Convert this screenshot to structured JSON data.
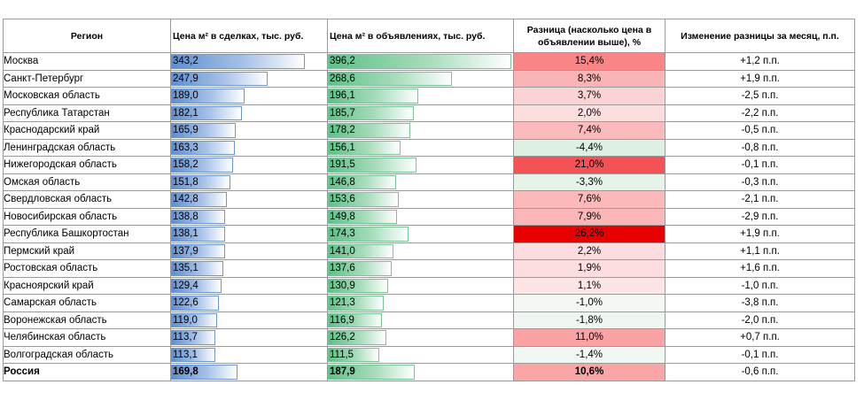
{
  "headers": {
    "region": "Регион",
    "deal_price": "Цена м² в сделках, тыс. руб.",
    "ad_price": "Цена м² в объявлениях, тыс. руб.",
    "difference": "Разница (насколько цена в объявлении выше), %",
    "change": "Изменение разницы за месяц, п.п."
  },
  "scale": {
    "bar_max": 400,
    "diff_color_min": -4.4,
    "diff_color_max": 26.2
  },
  "colors": {
    "bar_blue": "#5f8fd0",
    "bar_green": "#5fc088",
    "diff_high": "#f8696b",
    "diff_low": "#e6f4ea"
  },
  "rows": [
    {
      "region": "Москва",
      "deal_label": "343,2",
      "deal": 343.2,
      "ad_label": "396,2",
      "ad": 396.2,
      "diff_label": "15,4%",
      "diff": 15.4,
      "change": "+1,2 п.п."
    },
    {
      "region": "Санкт-Петербург",
      "deal_label": "247,9",
      "deal": 247.9,
      "ad_label": "268,6",
      "ad": 268.6,
      "diff_label": "8,3%",
      "diff": 8.3,
      "change": "+1,9 п.п."
    },
    {
      "region": "Московская область",
      "deal_label": "189,0",
      "deal": 189.0,
      "ad_label": "196,1",
      "ad": 196.1,
      "diff_label": "3,7%",
      "diff": 3.7,
      "change": "-2,5 п.п."
    },
    {
      "region": "Республика Татарстан",
      "deal_label": "182,1",
      "deal": 182.1,
      "ad_label": "185,7",
      "ad": 185.7,
      "diff_label": "2,0%",
      "diff": 2.0,
      "change": "-2,2 п.п."
    },
    {
      "region": "Краснодарский край",
      "deal_label": "165,9",
      "deal": 165.9,
      "ad_label": "178,2",
      "ad": 178.2,
      "diff_label": "7,4%",
      "diff": 7.4,
      "change": "-0,5 п.п."
    },
    {
      "region": "Ленинградская область",
      "deal_label": "163,3",
      "deal": 163.3,
      "ad_label": "156,1",
      "ad": 156.1,
      "diff_label": "-4,4%",
      "diff": -4.4,
      "change": "-0,8 п.п."
    },
    {
      "region": "Нижегородская область",
      "deal_label": "158,2",
      "deal": 158.2,
      "ad_label": "191,5",
      "ad": 191.5,
      "diff_label": "21,0%",
      "diff": 21.0,
      "change": "-0,1 п.п."
    },
    {
      "region": "Омская область",
      "deal_label": "151,8",
      "deal": 151.8,
      "ad_label": "146,8",
      "ad": 146.8,
      "diff_label": "-3,3%",
      "diff": -3.3,
      "change": "-0,3 п.п."
    },
    {
      "region": "Свердловская область",
      "deal_label": "142,8",
      "deal": 142.8,
      "ad_label": "153,6",
      "ad": 153.6,
      "diff_label": "7,6%",
      "diff": 7.6,
      "change": "-2,1 п.п."
    },
    {
      "region": "Новосибирская область",
      "deal_label": "138,8",
      "deal": 138.8,
      "ad_label": "149,8",
      "ad": 149.8,
      "diff_label": "7,9%",
      "diff": 7.9,
      "change": "-2,9 п.п."
    },
    {
      "region": "Республика Башкортостан",
      "deal_label": "138,1",
      "deal": 138.1,
      "ad_label": "174,3",
      "ad": 174.3,
      "diff_label": "26,2%",
      "diff": 26.2,
      "change": "+1,9 п.п."
    },
    {
      "region": "Пермский край",
      "deal_label": "137,9",
      "deal": 137.9,
      "ad_label": "141,0",
      "ad": 141.0,
      "diff_label": "2,2%",
      "diff": 2.2,
      "change": "+1,1 п.п."
    },
    {
      "region": "Ростовская область",
      "deal_label": "135,1",
      "deal": 135.1,
      "ad_label": "137,6",
      "ad": 137.6,
      "diff_label": "1,9%",
      "diff": 1.9,
      "change": "+1,6 п.п."
    },
    {
      "region": "Красноярский край",
      "deal_label": "129,4",
      "deal": 129.4,
      "ad_label": "130,9",
      "ad": 130.9,
      "diff_label": "1,1%",
      "diff": 1.1,
      "change": "-1,0 п.п."
    },
    {
      "region": "Самарская область",
      "deal_label": "122,6",
      "deal": 122.6,
      "ad_label": "121,3",
      "ad": 121.3,
      "diff_label": "-1,0%",
      "diff": -1.0,
      "change": "-3,8 п.п."
    },
    {
      "region": "Воронежская область",
      "deal_label": "119,0",
      "deal": 119.0,
      "ad_label": "116,9",
      "ad": 116.9,
      "diff_label": "-1,8%",
      "diff": -1.8,
      "change": "-2,0 п.п."
    },
    {
      "region": "Челябинская область",
      "deal_label": "113,7",
      "deal": 113.7,
      "ad_label": "126,2",
      "ad": 126.2,
      "diff_label": "11,0%",
      "diff": 11.0,
      "change": "+0,7 п.п."
    },
    {
      "region": "Волгоградская область",
      "deal_label": "113,1",
      "deal": 113.1,
      "ad_label": "111,5",
      "ad": 111.5,
      "diff_label": "-1,4%",
      "diff": -1.4,
      "change": "-0,1 п.п."
    }
  ],
  "total": {
    "region": "Россия",
    "deal_label": "169,8",
    "deal": 169.8,
    "ad_label": "187,9",
    "ad": 187.9,
    "diff_label": "10,6%",
    "diff": 10.6,
    "change": "-0,6 п.п."
  }
}
